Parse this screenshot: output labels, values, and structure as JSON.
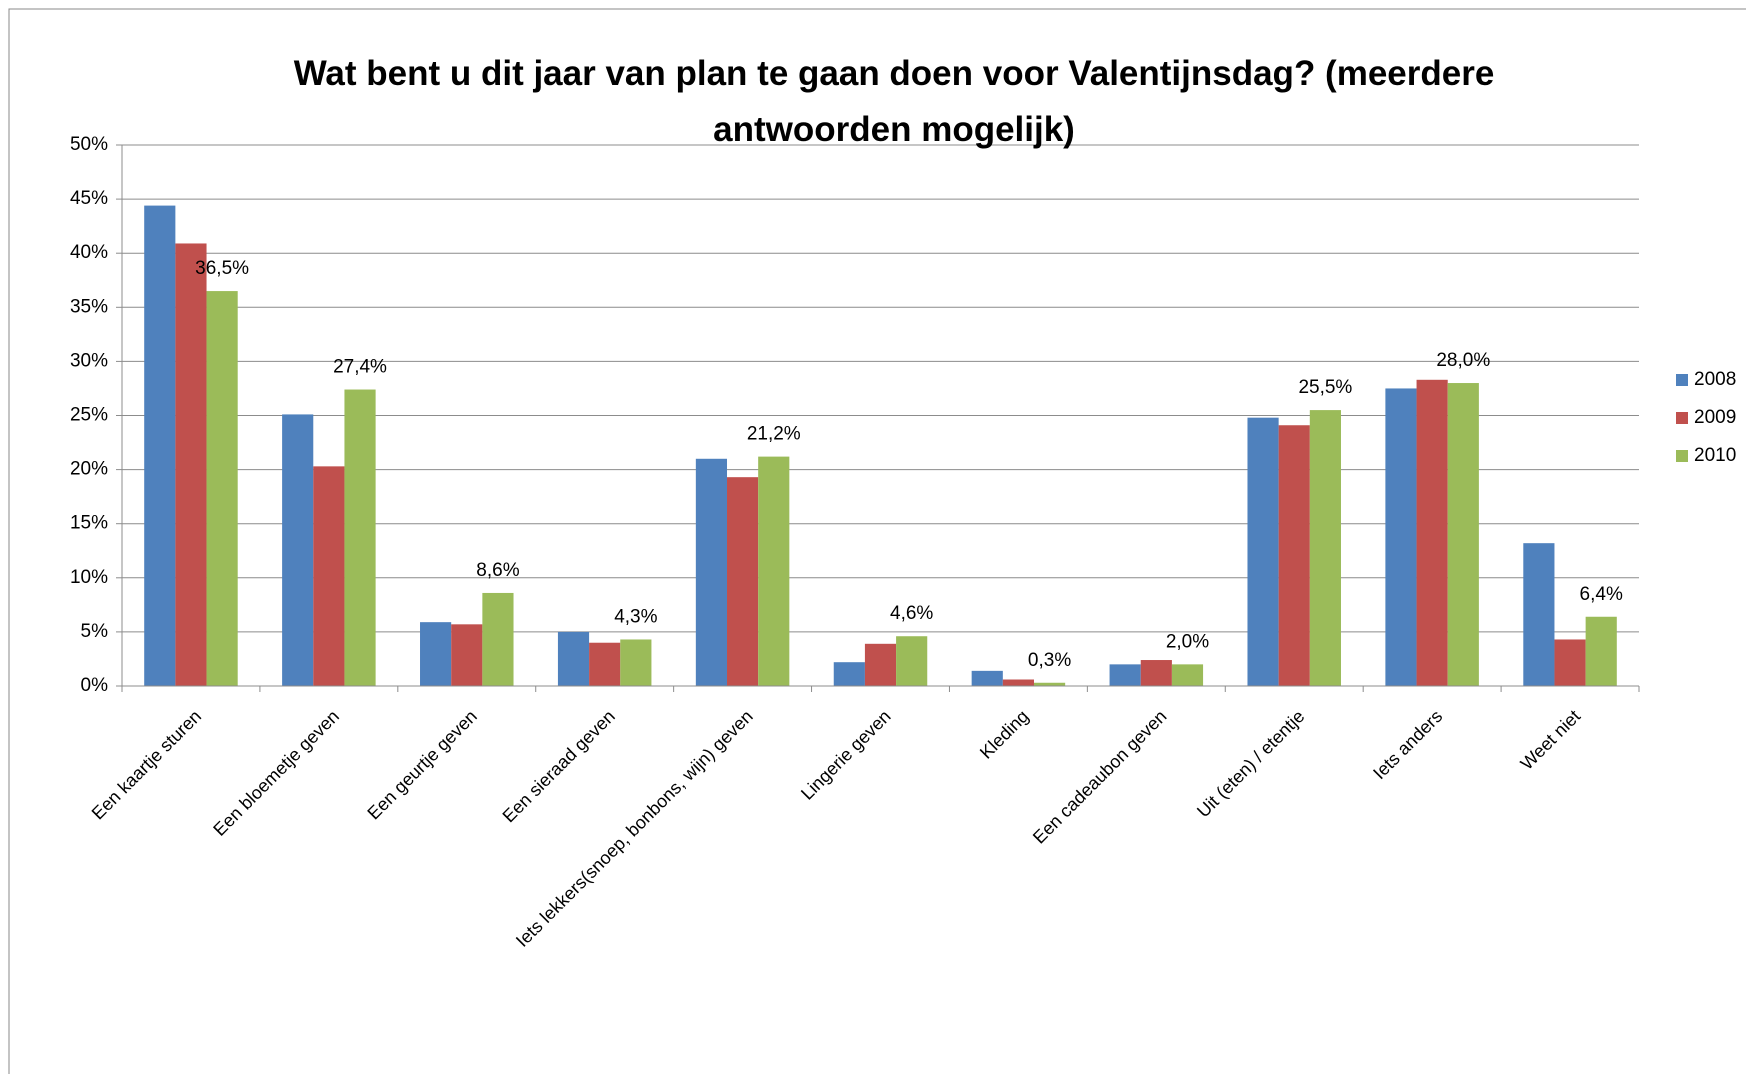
{
  "chart_data": {
    "type": "bar",
    "title": "Wat bent u dit jaar van plan te gaan doen voor Valentijnsdag? (meerdere antwoorden mogelijk)",
    "categories": [
      "Een kaartje sturen",
      "Een bloemetje geven",
      "Een geurtje geven",
      "Een sieraad geven",
      "Iets lekkers(snoep, bonbons, wijn) geven",
      "Lingerie geven",
      "Kleding",
      "Een cadeaubon geven",
      "Uit (eten) / etentje",
      "Iets anders",
      "Weet niet"
    ],
    "series": [
      {
        "name": "2008",
        "color": "#4f81bd",
        "values": [
          44.4,
          25.1,
          5.9,
          5.0,
          21.0,
          2.2,
          1.4,
          2.0,
          24.8,
          27.5,
          13.2
        ]
      },
      {
        "name": "2009",
        "color": "#c0504d",
        "values": [
          40.9,
          20.3,
          5.7,
          4.0,
          19.3,
          3.9,
          0.6,
          2.4,
          24.1,
          28.3,
          4.3
        ]
      },
      {
        "name": "2010",
        "color": "#9bbb59",
        "values": [
          36.5,
          27.4,
          8.6,
          4.3,
          21.2,
          4.6,
          0.3,
          2.0,
          25.5,
          28.0,
          6.4
        ],
        "value_labels": [
          "36,5%",
          "27,4%",
          "8,6%",
          "4,3%",
          "21,2%",
          "4,6%",
          "0,3%",
          "2,0%",
          "25,5%",
          "28,0%",
          "6,4%"
        ]
      }
    ],
    "ylim": [
      0,
      50
    ],
    "yticks": [
      {
        "value": 0,
        "label": "0%"
      },
      {
        "value": 5,
        "label": "5%"
      },
      {
        "value": 10,
        "label": "10%"
      },
      {
        "value": 15,
        "label": "15%"
      },
      {
        "value": 20,
        "label": "20%"
      },
      {
        "value": 25,
        "label": "25%"
      },
      {
        "value": 30,
        "label": "30%"
      },
      {
        "value": 35,
        "label": "35%"
      },
      {
        "value": 40,
        "label": "40%"
      },
      {
        "value": 45,
        "label": "45%"
      },
      {
        "value": 50,
        "label": "50%"
      }
    ],
    "grid": true,
    "legend": "right"
  }
}
